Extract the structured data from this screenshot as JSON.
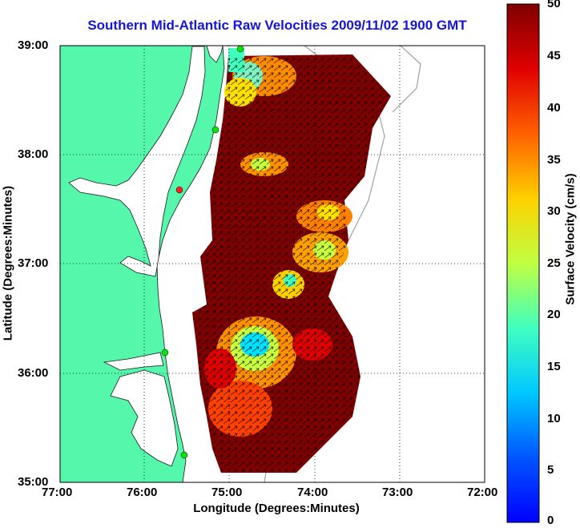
{
  "title": "Southern Mid-Atlantic Raw Velocities 2009/11/02 1900 GMT",
  "x_axis": {
    "label": "Longitude (Degrees:Minutes)",
    "ticks": [
      "77:00",
      "76:00",
      "75:00",
      "74:00",
      "73:00",
      "72:00"
    ]
  },
  "y_axis": {
    "label": "Latitude (Degrees:Minutes)",
    "ticks": [
      "39:00",
      "38:00",
      "37:00",
      "36:00",
      "35:00"
    ]
  },
  "colorbar": {
    "label": "Surface Velocity (cm/s)",
    "min": 0,
    "max": 50,
    "ticks": [
      "50",
      "45",
      "40",
      "35",
      "30",
      "25",
      "20",
      "15",
      "10",
      "5",
      "0"
    ]
  },
  "colors": {
    "title": "#1515d8",
    "land": "#55f7ab",
    "high_velocity": "#7f0000",
    "low_velocity": "#0000ff"
  }
}
